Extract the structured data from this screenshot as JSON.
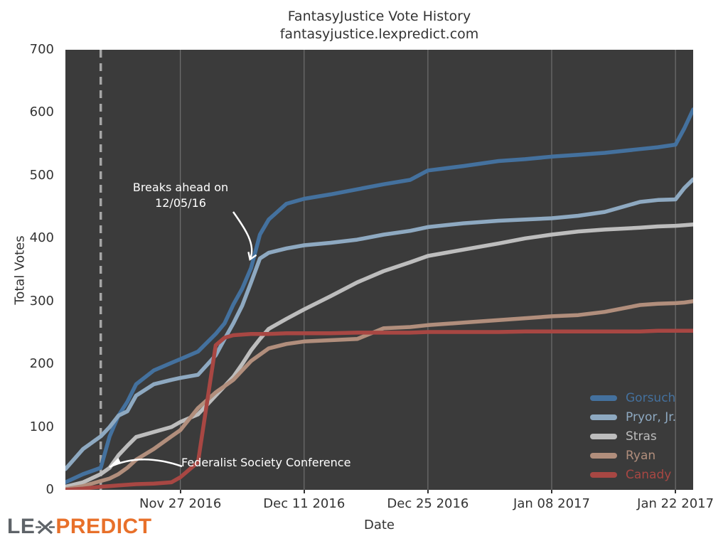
{
  "header": {
    "title": "FantasyJustice Vote History",
    "subtitle": "fantasyjustice.lexpredict.com"
  },
  "logo": {
    "prefix": "LE",
    "suffix": "PREDICT",
    "prefix_color": "#5E6368",
    "suffix_color": "#E8702A"
  },
  "chart_data": {
    "type": "line",
    "title": "FantasyJustice Vote History",
    "subtitle": "fantasyjustice.lexpredict.com",
    "xlabel": "Date",
    "ylabel": "Total Votes",
    "ylim": [
      0,
      700
    ],
    "yticks": [
      0,
      100,
      200,
      300,
      400,
      500,
      600,
      700
    ],
    "x_tick_labels": [
      "Nov 27 2016",
      "Dec 11 2016",
      "Dec 25 2016",
      "Jan 08 2017",
      "Jan 22 2017"
    ],
    "x_tick_days": [
      13,
      27,
      41,
      55,
      69
    ],
    "x_range_days": [
      0,
      71
    ],
    "x_start_date": "Nov 14 2016",
    "grid": "vertical-only",
    "legend_position": "lower-right",
    "plot_background": "#3B3B3B",
    "grid_color": "#8F8F8F",
    "dates": [
      "Nov 14",
      "Nov 16",
      "Nov 18",
      "Nov 19",
      "Nov 20",
      "Nov 21",
      "Nov 22",
      "Nov 24",
      "Nov 26",
      "Nov 27",
      "Nov 29",
      "Dec 01",
      "Dec 02",
      "Dec 03",
      "Dec 04",
      "Dec 05",
      "Dec 06",
      "Dec 07",
      "Dec 09",
      "Dec 11",
      "Dec 14",
      "Dec 17",
      "Dec 20",
      "Dec 23",
      "Dec 25",
      "Dec 29",
      "Jan 02",
      "Jan 05",
      "Jan 08",
      "Jan 11",
      "Jan 14",
      "Jan 18",
      "Jan 20",
      "Jan 22",
      "Jan 23",
      "Jan 24"
    ],
    "days": [
      0,
      2,
      4,
      5,
      6,
      7,
      8,
      10,
      12,
      13,
      15,
      17,
      18,
      19,
      20,
      21,
      22,
      23,
      25,
      27,
      30,
      33,
      36,
      39,
      41,
      45,
      49,
      52,
      55,
      58,
      61,
      65,
      67,
      69,
      70,
      71
    ],
    "series": [
      {
        "name": "Gorsuch",
        "color": "#44719E",
        "values": [
          12,
          25,
          35,
          85,
          118,
          140,
          168,
          190,
          202,
          208,
          220,
          248,
          265,
          295,
          320,
          353,
          406,
          430,
          455,
          463,
          470,
          478,
          486,
          493,
          508,
          515,
          523,
          526,
          530,
          533,
          536,
          542,
          545,
          549,
          575,
          605
        ]
      },
      {
        "name": "Pryor, Jr.",
        "color": "#8EA9C1",
        "values": [
          33,
          65,
          85,
          100,
          118,
          125,
          150,
          168,
          175,
          178,
          183,
          214,
          240,
          265,
          293,
          330,
          368,
          377,
          384,
          389,
          393,
          398,
          406,
          412,
          418,
          424,
          428,
          430,
          432,
          436,
          442,
          458,
          461,
          462,
          480,
          494
        ]
      },
      {
        "name": "Stras",
        "color": "#BDBDBD",
        "values": [
          5,
          12,
          25,
          35,
          55,
          70,
          84,
          92,
          100,
          108,
          120,
          150,
          165,
          180,
          200,
          222,
          240,
          256,
          272,
          287,
          308,
          330,
          348,
          362,
          372,
          382,
          392,
          400,
          406,
          411,
          414,
          417,
          419,
          420,
          421,
          422
        ]
      },
      {
        "name": "Ryan",
        "color": "#B18E7C",
        "values": [
          1,
          6,
          14,
          18,
          25,
          35,
          48,
          65,
          85,
          95,
          130,
          155,
          165,
          175,
          190,
          205,
          215,
          225,
          232,
          236,
          238,
          240,
          257,
          259,
          262,
          266,
          270,
          273,
          276,
          278,
          283,
          294,
          296,
          297,
          298,
          300
        ]
      },
      {
        "name": "Canady",
        "color": "#A84743",
        "values": [
          0,
          2,
          5,
          6,
          7,
          8,
          9,
          10,
          12,
          20,
          44,
          230,
          242,
          246,
          247,
          248,
          248,
          248,
          249,
          249,
          249,
          250,
          250,
          250,
          251,
          251,
          251,
          252,
          252,
          252,
          252,
          252,
          253,
          253,
          253,
          253
        ]
      }
    ],
    "annotations": [
      {
        "text_line1": "Breaks ahead on",
        "text_line2": "12/05/16",
        "target_date": "Dec 05 2016",
        "target_value": 353
      },
      {
        "text": "Federalist Society Conference",
        "target_date": "Nov 18 2016"
      }
    ],
    "event_line": {
      "day": 4,
      "date": "Nov 18 2016",
      "style": "dashed",
      "color": "#A6A6A6"
    }
  }
}
